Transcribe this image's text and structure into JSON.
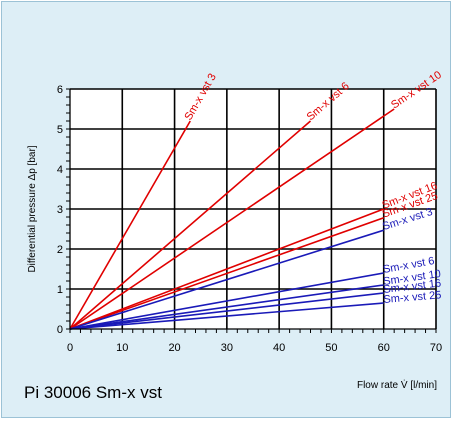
{
  "caption": "Pi 30006 Sm-x vst",
  "chart_data": {
    "type": "line",
    "xlabel": "Flow rate V̇ [l/min]",
    "ylabel": "Differential pressure Δp [bar]",
    "xlim": [
      0,
      70
    ],
    "ylim": [
      0,
      6
    ],
    "x_ticks": [
      0,
      10,
      20,
      30,
      40,
      50,
      60,
      70
    ],
    "y_ticks": [
      0,
      1,
      2,
      3,
      4,
      5,
      6
    ],
    "grid": true,
    "colors": {
      "red": "#e00000",
      "blue": "#1a1ab8"
    },
    "series": [
      {
        "name": "Sm-x vst 3",
        "color": "red",
        "x": [
          0,
          23
        ],
        "y": [
          0,
          5.2
        ]
      },
      {
        "name": "Sm-x vst 6",
        "color": "red",
        "x": [
          0,
          46
        ],
        "y": [
          0,
          5.2
        ]
      },
      {
        "name": "Sm-x vst 10",
        "color": "red",
        "x": [
          0,
          62
        ],
        "y": [
          0,
          5.5
        ]
      },
      {
        "name": "Sm-x vst 16",
        "color": "red",
        "x": [
          0,
          60
        ],
        "y": [
          0,
          3.0
        ]
      },
      {
        "name": "Sm-x vst 25",
        "color": "red",
        "x": [
          0,
          60
        ],
        "y": [
          0,
          2.78
        ]
      },
      {
        "name": "Sm-x vst 3",
        "color": "blue",
        "x": [
          0,
          60
        ],
        "y": [
          0,
          2.47
        ]
      },
      {
        "name": "Sm-x vst 6",
        "color": "blue",
        "x": [
          0,
          60
        ],
        "y": [
          0,
          1.4
        ]
      },
      {
        "name": "Sm-x vst 10",
        "color": "blue",
        "x": [
          0,
          60
        ],
        "y": [
          0,
          1.1
        ]
      },
      {
        "name": "Sm-x vst 16",
        "color": "blue",
        "x": [
          0,
          60
        ],
        "y": [
          0,
          0.9
        ]
      },
      {
        "name": "Sm-x vst 25",
        "color": "blue",
        "x": [
          0,
          60
        ],
        "y": [
          0,
          0.65
        ]
      }
    ]
  }
}
